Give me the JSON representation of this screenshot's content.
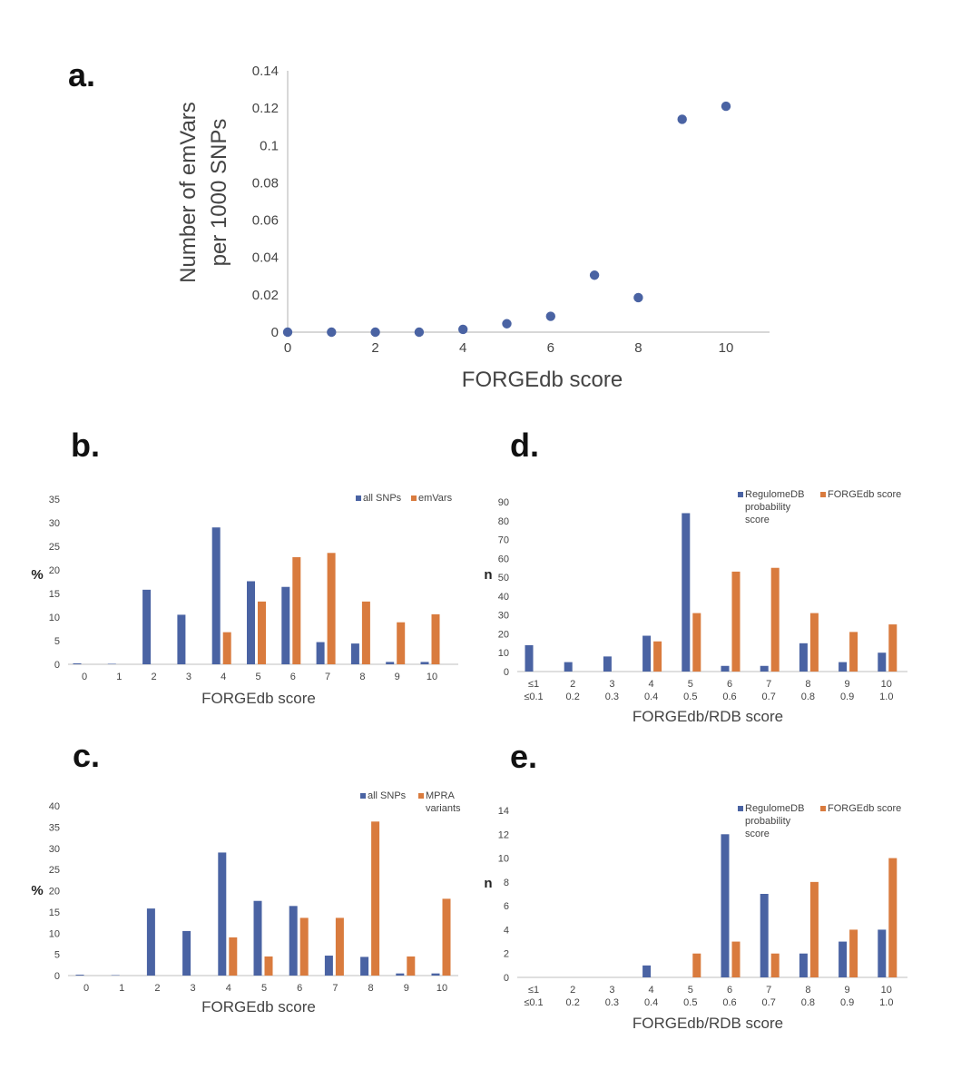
{
  "colors": {
    "blue": "#4a63a3",
    "orange": "#d97b3e",
    "axis": "#bfbfbf",
    "text": "#444444"
  },
  "chart_data": [
    {
      "panel": "a.",
      "type": "scatter",
      "xlabel": "FORGEdb score",
      "ylabel_lines": [
        "Number of emVars",
        "per 1000 SNPs"
      ],
      "xlim": [
        0,
        11
      ],
      "ylim": [
        0,
        0.14
      ],
      "xticks": [
        "0",
        "2",
        "4",
        "6",
        "8",
        "10"
      ],
      "xtick_values": [
        0,
        2,
        4,
        6,
        8,
        10
      ],
      "yticks": [
        "0",
        "0.02",
        "0.04",
        "0.06",
        "0.08",
        "0.1",
        "0.12",
        "0.14"
      ],
      "ytick_values": [
        0,
        0.02,
        0.04,
        0.06,
        0.08,
        0.1,
        0.12,
        0.14
      ],
      "grid": false,
      "x": [
        0,
        1,
        2,
        3,
        4,
        5,
        6,
        7,
        8,
        9,
        10
      ],
      "y": [
        0,
        0,
        0,
        0,
        0.0015,
        0.0045,
        0.0085,
        0.0305,
        0.0185,
        0.114,
        0.121
      ]
    },
    {
      "panel": "b.",
      "type": "bar",
      "xlabel": "FORGEdb score",
      "ylabel": "%",
      "ylim": [
        0,
        35
      ],
      "yticks": [
        "0",
        "5",
        "10",
        "15",
        "20",
        "25",
        "30",
        "35"
      ],
      "ytick_values": [
        0,
        5,
        10,
        15,
        20,
        25,
        30,
        35
      ],
      "categories": [
        "0",
        "1",
        "2",
        "3",
        "4",
        "5",
        "6",
        "7",
        "8",
        "9",
        "10"
      ],
      "legend_position": "top-right",
      "series": [
        {
          "name": "all SNPs",
          "values": [
            0.2,
            0.1,
            15.8,
            10.5,
            29,
            17.6,
            16.4,
            4.7,
            4.4,
            0.5,
            0.5
          ]
        },
        {
          "name": "emVars",
          "values": [
            0,
            0,
            0,
            0,
            6.8,
            13.3,
            22.7,
            23.6,
            13.3,
            8.9,
            10.6
          ]
        }
      ]
    },
    {
      "panel": "c.",
      "type": "bar",
      "xlabel": "FORGEdb score",
      "ylabel": "%",
      "ylim": [
        0,
        40
      ],
      "yticks": [
        "0",
        "5",
        "10",
        "15",
        "20",
        "25",
        "30",
        "35",
        "40"
      ],
      "ytick_values": [
        0,
        5,
        10,
        15,
        20,
        25,
        30,
        35,
        40
      ],
      "categories": [
        "0",
        "1",
        "2",
        "3",
        "4",
        "5",
        "6",
        "7",
        "8",
        "9",
        "10"
      ],
      "legend_position": "top-right",
      "series": [
        {
          "name": "all SNPs",
          "values": [
            0.2,
            0.1,
            15.8,
            10.5,
            29,
            17.6,
            16.4,
            4.7,
            4.4,
            0.5,
            0.5
          ]
        },
        {
          "name_lines": [
            "MPRA",
            "variants"
          ],
          "values": [
            0,
            0,
            0,
            0,
            9,
            4.5,
            13.6,
            13.6,
            36.3,
            4.5,
            18.1
          ]
        }
      ]
    },
    {
      "panel": "d.",
      "type": "bar",
      "xlabel": "FORGEdb/RDB score",
      "ylabel": "n",
      "ylim": [
        0,
        90
      ],
      "yticks": [
        "0",
        "10",
        "20",
        "30",
        "40",
        "50",
        "60",
        "70",
        "80",
        "90"
      ],
      "ytick_values": [
        0,
        10,
        20,
        30,
        40,
        50,
        60,
        70,
        80,
        90
      ],
      "categories": [
        "≤1",
        "2",
        "3",
        "4",
        "5",
        "6",
        "7",
        "8",
        "9",
        "10"
      ],
      "categories_line2": [
        "≤0.1",
        "0.2",
        "0.3",
        "0.4",
        "0.5",
        "0.6",
        "0.7",
        "0.8",
        "0.9",
        "1.0"
      ],
      "legend_position": "top-right",
      "series": [
        {
          "name_lines": [
            "RegulomeDB",
            "probability",
            "score"
          ],
          "values": [
            14,
            5,
            8,
            19,
            84,
            3,
            3,
            15,
            5,
            10
          ]
        },
        {
          "name": "FORGEdb score",
          "values": [
            0,
            0,
            0,
            16,
            31,
            53,
            55,
            31,
            21,
            25
          ]
        }
      ]
    },
    {
      "panel": "e.",
      "type": "bar",
      "xlabel": "FORGEdb/RDB score",
      "ylabel": "n",
      "ylim": [
        0,
        14
      ],
      "yticks": [
        "0",
        "2",
        "4",
        "6",
        "8",
        "10",
        "12",
        "14"
      ],
      "ytick_values": [
        0,
        2,
        4,
        6,
        8,
        10,
        12,
        14
      ],
      "categories": [
        "≤1",
        "2",
        "3",
        "4",
        "5",
        "6",
        "7",
        "8",
        "9",
        "10"
      ],
      "categories_line2": [
        "≤0.1",
        "0.2",
        "0.3",
        "0.4",
        "0.5",
        "0.6",
        "0.7",
        "0.8",
        "0.9",
        "1.0"
      ],
      "legend_position": "top-right",
      "series": [
        {
          "name_lines": [
            "RegulomeDB",
            "probability",
            "score"
          ],
          "values": [
            0,
            0,
            0,
            1,
            0,
            12,
            7,
            2,
            3,
            4
          ]
        },
        {
          "name": "FORGEdb score",
          "values": [
            0,
            0,
            0,
            0,
            2,
            3,
            2,
            8,
            4,
            10
          ]
        }
      ]
    }
  ]
}
